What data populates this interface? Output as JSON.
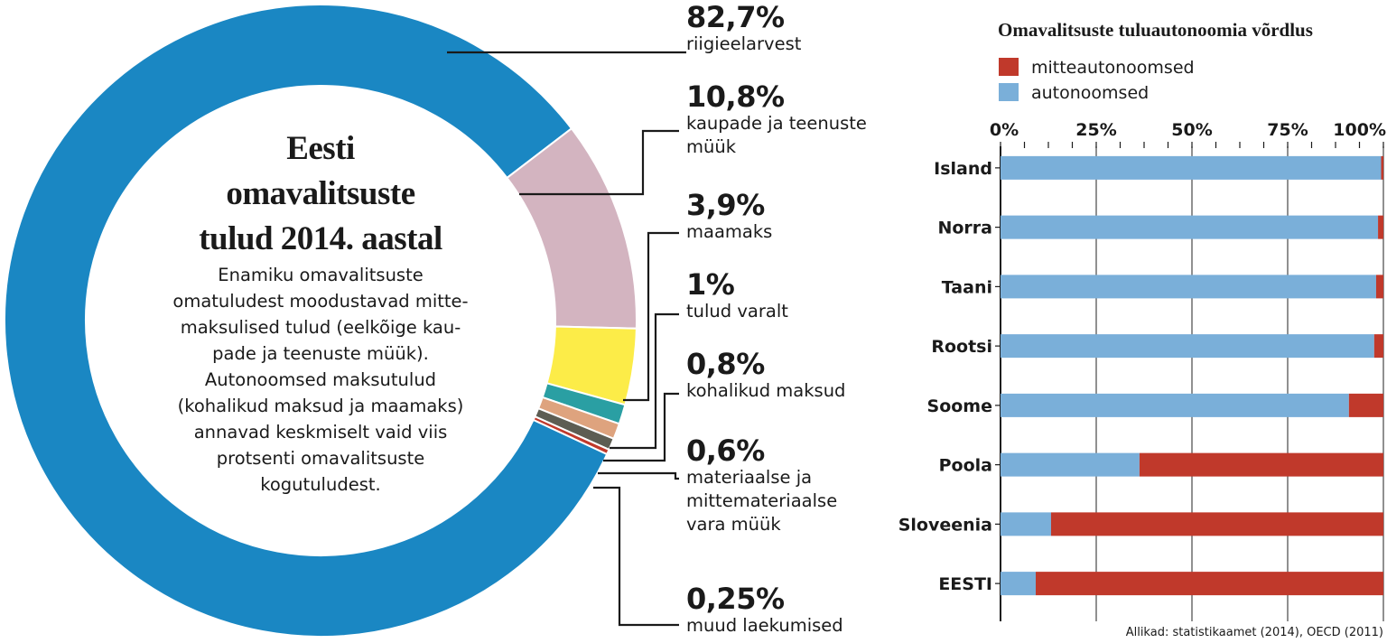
{
  "chart_data": [
    {
      "type": "pie",
      "title": "Eesti omavalitsuste tulud 2014. aastal",
      "subtitle": "Enamiku omavalitsuste omatuludest moodustavad mitte-maksulised tulud (eelkõige kau-pade ja teenuste müük). Autonoomsed maksutulud (kohalikud maksud ja maamaks) annavad keskmiselt vaid viis protsenti omavalitsuste kogutuludest.",
      "subtitle_lines": [
        "Enamiku omavalitsuste",
        "omatuludest moodustavad mitte-",
        "maksulised tulud (eelkõige kau-",
        "pade ja teenuste müük).",
        "Autonoomsed maksutulud",
        "(kohalikud maksud ja maamaks)",
        "annavad keskmiselt vaid viis",
        "protsenti omavalitsuste",
        "kogutuludest."
      ],
      "title_lines": [
        "Eesti",
        "omavalitsuste",
        "tulud 2014. aastal"
      ],
      "slices": [
        {
          "label": "riigieelarvest",
          "label_lines": [
            "riigieelarvest"
          ],
          "value": 82.7,
          "display": "82,7%",
          "color": "#1a87c3"
        },
        {
          "label": "kaupade ja teenuste müük",
          "label_lines": [
            "kaupade ja teenuste",
            "müük"
          ],
          "value": 10.8,
          "display": "10,8%",
          "color": "#d3b4c0"
        },
        {
          "label": "maamaks",
          "label_lines": [
            "maamaks"
          ],
          "value": 3.9,
          "display": "3,9%",
          "color": "#fcec48"
        },
        {
          "label": "tulud varalt",
          "label_lines": [
            "tulud varalt"
          ],
          "value": 1,
          "display": "1%",
          "color": "#2a9fa3"
        },
        {
          "label": "kohalikud maksud",
          "label_lines": [
            "kohalikud maksud"
          ],
          "value": 0.8,
          "display": "0,8%",
          "color": "#dea37e"
        },
        {
          "label": "materiaalse ja mittemateriaalse vara müük",
          "label_lines": [
            "materiaalse ja",
            "mittemateriaalse",
            "vara müük"
          ],
          "value": 0.6,
          "display": "0,6%",
          "color": "#5d5d53"
        },
        {
          "label": "muud laekumised",
          "label_lines": [
            "muud laekumised"
          ],
          "value": 0.25,
          "display": "0,25%",
          "color": "#c0392b"
        }
      ]
    },
    {
      "type": "bar",
      "orientation": "horizontal",
      "stacked": true,
      "title": "Omavalitsuste tuluautonoomia võrdlus",
      "categories": [
        "Island",
        "Norra",
        "Taani",
        "Rootsi",
        "Soome",
        "Poola",
        "Sloveenia",
        "EESTI"
      ],
      "series": [
        {
          "name": "autonoomsed",
          "color": "#7aafd9",
          "values": [
            99.4,
            98.6,
            98.1,
            97.6,
            91.0,
            36.3,
            13.2,
            9.2
          ]
        },
        {
          "name": "mitteautonoomsed",
          "color": "#c0392b",
          "values": [
            0.6,
            1.4,
            1.9,
            2.4,
            9.0,
            63.7,
            86.8,
            90.8
          ]
        }
      ],
      "legend_order": [
        "mitteautonoomsed",
        "autonoomsed"
      ],
      "xlim": [
        0,
        100
      ],
      "xticks": [
        "0%",
        "25%",
        "50%",
        "75%",
        "100%"
      ],
      "legend_position": "top-left",
      "grid": true
    }
  ],
  "source": "Allikad: statistikaamet (2014), OECD (2011)"
}
